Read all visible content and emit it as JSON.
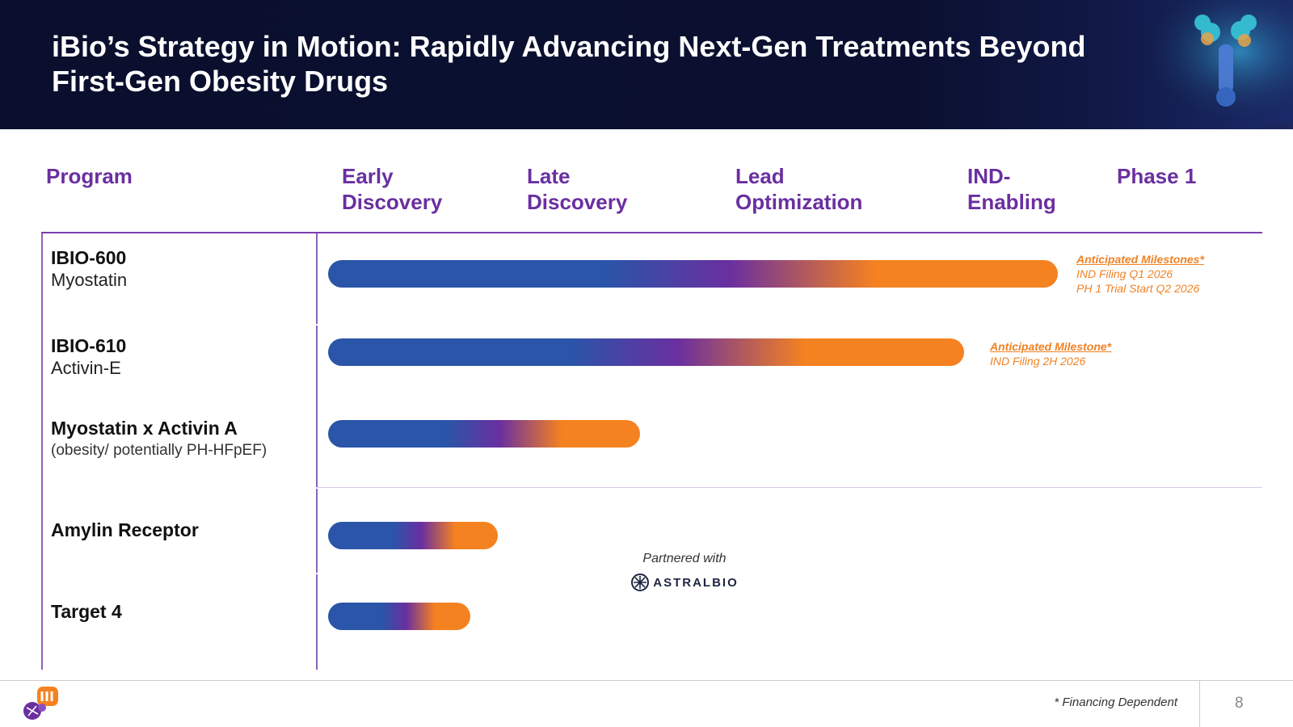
{
  "header": {
    "title_line1": "iBio’s Strategy in Motion: Rapidly Advancing Next-Gen Treatments Beyond",
    "title_line2": "First-Gen Obesity Drugs"
  },
  "columns": {
    "program": "Program",
    "early_1": "Early",
    "early_2": "Discovery",
    "late_1": "Late",
    "late_2": "Discovery",
    "lead_1": "Lead",
    "lead_2": "Optimization",
    "ind_1": "IND-",
    "ind_2": "Enabling",
    "phase1": "Phase 1"
  },
  "programs": [
    {
      "name": "IBIO-600",
      "target": "Myostatin",
      "progress_pct": 90.3
    },
    {
      "name": "IBIO-610",
      "target": "Activin-E",
      "progress_pct": 78.7
    },
    {
      "name": "Myostatin x Activin A",
      "target": "(obesity/ potentially PH-HFpEF)",
      "progress_pct": 38.6
    },
    {
      "name": "Amylin Receptor",
      "target": "",
      "progress_pct": 21.0
    },
    {
      "name": "Target 4",
      "target": "",
      "progress_pct": 17.6
    }
  ],
  "milestones": {
    "ibio600": {
      "title": "Anticipated Milestones*",
      "line1": "IND Filing Q1 2026",
      "line2": "PH 1 Trial Start Q2 2026"
    },
    "ibio610": {
      "title": "Anticipated Milestone*",
      "line1": "IND Filing 2H 2026"
    }
  },
  "partner": {
    "label": "Partnered with",
    "name": "ASTRALBIO"
  },
  "footer": {
    "footnote": "* Financing Dependent",
    "page_number": "8"
  },
  "colors": {
    "accent_purple": "#6a2fa0",
    "bar_blue": "#2a55a8",
    "bar_purple": "#6a2fa0",
    "bar_orange": "#f58220",
    "header_bg": "#0a0f2e"
  },
  "icons": {
    "header_art": "antibody-illustration",
    "partner_logo": "astralbio-logo-icon",
    "company_logo": "ibio-logo-icon"
  }
}
